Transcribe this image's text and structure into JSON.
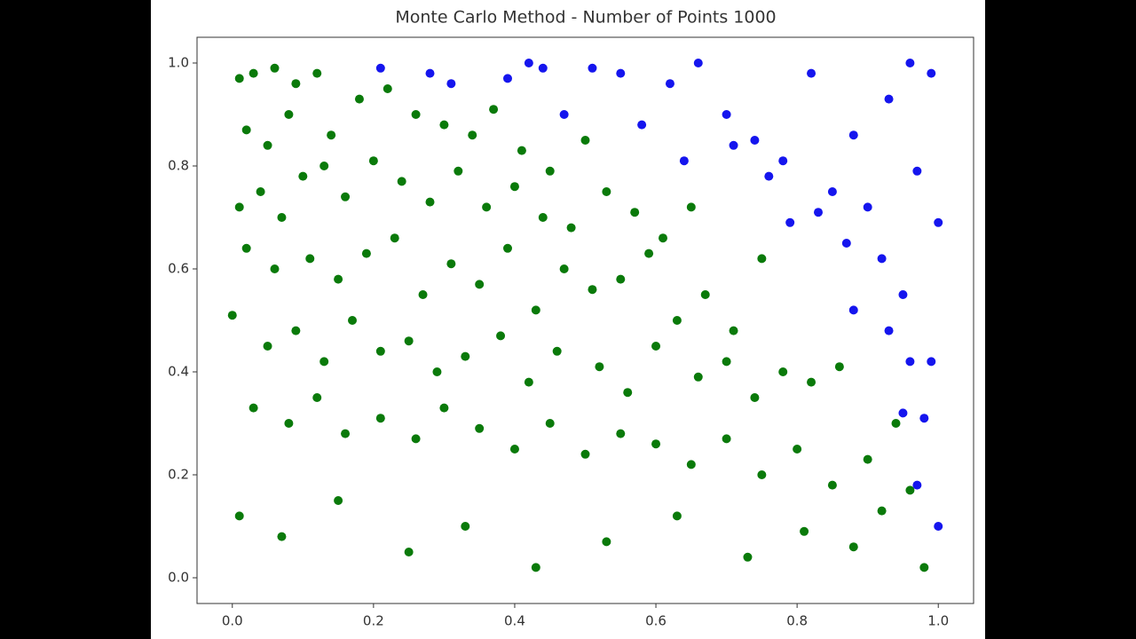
{
  "chart_data": {
    "type": "scatter",
    "title": "Monte Carlo Method - Number of Points 1000",
    "xlim": [
      -0.05,
      1.05
    ],
    "ylim": [
      -0.05,
      1.05
    ],
    "xticks": [
      {
        "value": 0,
        "label": "0.0"
      },
      0.2,
      0.4,
      0.6,
      0.8,
      {
        "value": 1,
        "label": "1.0"
      }
    ],
    "yticks": [
      {
        "value": 0,
        "label": "0.0"
      },
      0.2,
      0.4,
      0.6,
      0.8,
      {
        "value": 1,
        "label": "1.0"
      }
    ],
    "series": [
      {
        "color": "#0a7a0a",
        "x": [
          0.01,
          0.03,
          0.06,
          0.09,
          0.12,
          0.02,
          0.05,
          0.08,
          0.14,
          0.18,
          0.22,
          0.26,
          0.3,
          0.34,
          0.37,
          0.41,
          0.45,
          0.5,
          0.01,
          0.04,
          0.07,
          0.1,
          0.13,
          0.16,
          0.2,
          0.24,
          0.28,
          0.32,
          0.36,
          0.4,
          0.44,
          0.48,
          0.53,
          0.57,
          0.61,
          0.65,
          0.02,
          0.06,
          0.11,
          0.15,
          0.19,
          0.23,
          0.27,
          0.31,
          0.35,
          0.39,
          0.43,
          0.47,
          0.51,
          0.55,
          0.59,
          0.63,
          0.67,
          0.71,
          0.75,
          0.0,
          0.05,
          0.09,
          0.13,
          0.17,
          0.21,
          0.25,
          0.29,
          0.33,
          0.38,
          0.42,
          0.46,
          0.52,
          0.56,
          0.6,
          0.66,
          0.7,
          0.74,
          0.78,
          0.82,
          0.86,
          0.03,
          0.08,
          0.12,
          0.16,
          0.21,
          0.26,
          0.3,
          0.35,
          0.4,
          0.45,
          0.5,
          0.55,
          0.6,
          0.65,
          0.7,
          0.75,
          0.8,
          0.85,
          0.9,
          0.94,
          0.01,
          0.07,
          0.15,
          0.25,
          0.33,
          0.43,
          0.53,
          0.63,
          0.73,
          0.81,
          0.88,
          0.92,
          0.96,
          0.98
        ],
        "values": [
          0.97,
          0.98,
          0.99,
          0.96,
          0.98,
          0.87,
          0.84,
          0.9,
          0.86,
          0.93,
          0.95,
          0.9,
          0.88,
          0.86,
          0.91,
          0.83,
          0.79,
          0.85,
          0.72,
          0.75,
          0.7,
          0.78,
          0.8,
          0.74,
          0.81,
          0.77,
          0.73,
          0.79,
          0.72,
          0.76,
          0.7,
          0.68,
          0.75,
          0.71,
          0.66,
          0.72,
          0.64,
          0.6,
          0.62,
          0.58,
          0.63,
          0.66,
          0.55,
          0.61,
          0.57,
          0.64,
          0.52,
          0.6,
          0.56,
          0.58,
          0.63,
          0.5,
          0.55,
          0.48,
          0.62,
          0.51,
          0.45,
          0.48,
          0.42,
          0.5,
          0.44,
          0.46,
          0.4,
          0.43,
          0.47,
          0.38,
          0.44,
          0.41,
          0.36,
          0.45,
          0.39,
          0.42,
          0.35,
          0.4,
          0.38,
          0.41,
          0.33,
          0.3,
          0.35,
          0.28,
          0.31,
          0.27,
          0.33,
          0.29,
          0.25,
          0.3,
          0.24,
          0.28,
          0.26,
          0.22,
          0.27,
          0.2,
          0.25,
          0.18,
          0.23,
          0.3,
          0.12,
          0.08,
          0.15,
          0.05,
          0.1,
          0.02,
          0.07,
          0.12,
          0.04,
          0.09,
          0.06,
          0.13,
          0.17,
          0.02
        ]
      },
      {
        "color": "#1515ee",
        "x": [
          0.21,
          0.28,
          0.31,
          0.39,
          0.42,
          0.44,
          0.47,
          0.51,
          0.55,
          0.58,
          0.62,
          0.66,
          0.7,
          0.74,
          0.78,
          0.82,
          0.85,
          0.88,
          0.9,
          0.93,
          0.96,
          0.99,
          0.97,
          1.0,
          0.95,
          0.99,
          0.92,
          0.98,
          0.97,
          1.0,
          0.93,
          0.88,
          0.83,
          0.76,
          0.64,
          0.71,
          0.87,
          0.95,
          0.96,
          0.79
        ],
        "values": [
          0.99,
          0.98,
          0.96,
          0.97,
          1.0,
          0.99,
          0.9,
          0.99,
          0.98,
          0.88,
          0.96,
          1.0,
          0.9,
          0.85,
          0.81,
          0.98,
          0.75,
          0.86,
          0.72,
          0.93,
          1.0,
          0.98,
          0.79,
          0.69,
          0.55,
          0.42,
          0.62,
          0.31,
          0.18,
          0.1,
          0.48,
          0.52,
          0.71,
          0.78,
          0.81,
          0.84,
          0.65,
          0.32,
          0.42,
          0.69
        ]
      }
    ]
  }
}
